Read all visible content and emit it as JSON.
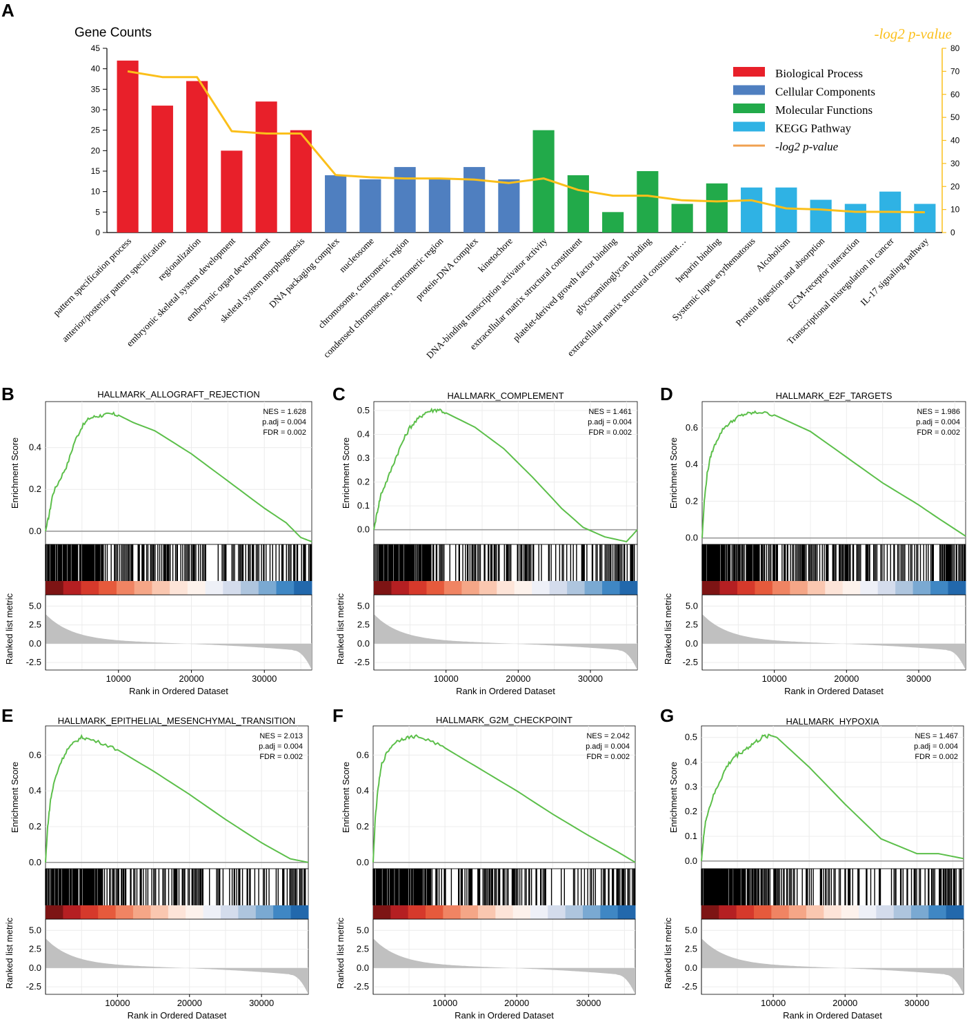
{
  "figure": {
    "panel_a": {
      "label": "A",
      "ylabel_left": "Gene Counts",
      "ylabel_right": "-log2 p-value"
    },
    "colors": {
      "biological_process": "#e8202a",
      "cellular_components": "#4f7fc0",
      "molecular_functions": "#22aa4a",
      "kegg_pathway": "#2fb2e4",
      "pvalue_line": "#fbbf1a",
      "legend_line": "#f0a050",
      "es_line": "#5cbf4a",
      "metric_fill": "#c0c0c0"
    }
  },
  "chart_data": [
    {
      "type": "bar",
      "panel": "A",
      "title": "",
      "ylabel": "Gene Counts",
      "y2label": "-log2 p-value",
      "ylim": [
        0,
        45
      ],
      "y2lim": [
        0,
        80
      ],
      "yticks": [
        0,
        5,
        10,
        15,
        20,
        25,
        30,
        35,
        40,
        45
      ],
      "y2ticks": [
        0,
        10,
        20,
        30,
        40,
        50,
        60,
        70,
        80
      ],
      "legend": [
        "Biological Process",
        "Cellular Components",
        "Molecular Functions",
        "KEGG Pathway",
        "-log2 p-value"
      ],
      "legend_position": "top-right",
      "categories": [
        "pattern specification process",
        "anterior/posterior pattern specification",
        "regionalization",
        "embryonic skeletal system development",
        "embryonic organ development",
        "skeletal system morphogenesis",
        "DNA packaging complex",
        "nucleosome",
        "chromosome, centromeric region",
        "condensed chromosome, centromeric region",
        "protein-DNA complex",
        "kinetochore",
        "DNA-binding transcription activator activity",
        "extracellular matrix structural constituent",
        "platelet-derived growth factor binding",
        "glycosaminoglycan binding",
        "extracellular matrix structural constituent…",
        "heparin binding",
        "Systemic lupus erythematosus",
        "Alcoholism",
        "Protein digestion and absorption",
        "ECM-receptor interaction",
        "Transcriptional misregulation in cancer",
        "IL-17 signaling pathway"
      ],
      "groups": [
        "BP",
        "BP",
        "BP",
        "BP",
        "BP",
        "BP",
        "CC",
        "CC",
        "CC",
        "CC",
        "CC",
        "CC",
        "MF",
        "MF",
        "MF",
        "MF",
        "MF",
        "MF",
        "KEGG",
        "KEGG",
        "KEGG",
        "KEGG",
        "KEGG",
        "KEGG"
      ],
      "series": [
        {
          "name": "Gene Counts",
          "values": [
            42,
            31,
            37,
            20,
            32,
            25,
            14,
            13,
            16,
            13,
            16,
            13,
            25,
            14,
            5,
            15,
            7,
            12,
            11,
            11,
            8,
            7,
            10,
            7
          ]
        },
        {
          "name": "-log2 p-value",
          "values": [
            70,
            67.5,
            67.5,
            44,
            43,
            43,
            25,
            24,
            23.5,
            23.5,
            23,
            21.5,
            23.5,
            18.5,
            16,
            16,
            14,
            13.5,
            14,
            10.5,
            10,
            9,
            9,
            8.8
          ]
        }
      ]
    },
    {
      "type": "line",
      "panel": "B",
      "title": "HALLMARK_ALLOGRAFT_REJECTION",
      "stats": [
        "NES = 1.628",
        "p.adj = 0.004",
        "FDR = 0.002"
      ],
      "xlabel": "Rank in Ordered Dataset",
      "ylabel": "Enrichment Score",
      "metric_label": "Ranked list metric",
      "ylim": [
        -0.05,
        0.6
      ],
      "yticks": [
        "0.0",
        "0.2",
        "0.4"
      ],
      "xlim": [
        0,
        36500
      ],
      "xticks": [
        "10000",
        "20000",
        "30000"
      ],
      "metric_ylim": [
        -3.5,
        6.5
      ],
      "metric_yticks": [
        "5.0",
        "2.5",
        "0.0",
        "-2.5"
      ],
      "x": [
        0,
        500,
        1000,
        2000,
        3000,
        4000,
        5000,
        6000,
        7000,
        8000,
        9000,
        10000,
        12000,
        15000,
        20000,
        25000,
        30000,
        33000,
        35000,
        36500
      ],
      "y": [
        0.0,
        0.08,
        0.18,
        0.25,
        0.32,
        0.43,
        0.5,
        0.54,
        0.55,
        0.555,
        0.56,
        0.555,
        0.52,
        0.48,
        0.37,
        0.24,
        0.11,
        0.04,
        -0.03,
        -0.05
      ]
    },
    {
      "type": "line",
      "panel": "C",
      "title": "HALLMARK_COMPLEMENT",
      "stats": [
        "NES = 1.461",
        "p.adj = 0.004",
        "FDR = 0.002"
      ],
      "xlabel": "Rank in Ordered Dataset",
      "ylabel": "Enrichment Score",
      "metric_label": "Ranked list metric",
      "ylim": [
        -0.05,
        0.52
      ],
      "yticks": [
        "0.0",
        "0.1",
        "0.2",
        "0.3",
        "0.4",
        "0.5"
      ],
      "xlim": [
        0,
        36500
      ],
      "xticks": [
        "10000",
        "20000",
        "30000"
      ],
      "metric_ylim": [
        -3.5,
        6.5
      ],
      "metric_yticks": [
        "5.0",
        "2.5",
        "0.0",
        "-2.5"
      ],
      "x": [
        0,
        500,
        1000,
        2000,
        3000,
        4000,
        5000,
        6000,
        7000,
        8000,
        9000,
        10000,
        14000,
        18000,
        22000,
        26000,
        29000,
        32000,
        35000,
        36500
      ],
      "y": [
        0.0,
        0.08,
        0.15,
        0.22,
        0.3,
        0.37,
        0.43,
        0.46,
        0.49,
        0.5,
        0.505,
        0.49,
        0.43,
        0.34,
        0.22,
        0.09,
        0.01,
        -0.03,
        -0.05,
        0.0
      ]
    },
    {
      "type": "line",
      "panel": "D",
      "title": "HALLMARK_E2F_TARGETS",
      "stats": [
        "NES = 1.986",
        "p.adj = 0.004",
        "FDR = 0.002"
      ],
      "xlabel": "Rank in Ordered Dataset",
      "ylabel": "Enrichment Score",
      "metric_label": "Ranked list metric",
      "ylim": [
        -0.02,
        0.72
      ],
      "yticks": [
        "0.0",
        "0.2",
        "0.4",
        "0.6"
      ],
      "xlim": [
        0,
        36500
      ],
      "xticks": [
        "10000",
        "20000",
        "30000"
      ],
      "metric_ylim": [
        -3.5,
        6.5
      ],
      "metric_yticks": [
        "5.0",
        "2.5",
        "0.0",
        "-2.5"
      ],
      "x": [
        0,
        300,
        700,
        1200,
        2000,
        3000,
        4000,
        5000,
        6000,
        7000,
        8000,
        10000,
        15000,
        20000,
        25000,
        30000,
        33000,
        36500
      ],
      "y": [
        0.0,
        0.2,
        0.35,
        0.45,
        0.53,
        0.6,
        0.63,
        0.66,
        0.675,
        0.68,
        0.685,
        0.67,
        0.58,
        0.44,
        0.3,
        0.18,
        0.1,
        0.01
      ]
    },
    {
      "type": "line",
      "panel": "E",
      "title": "HALLMARK_EPITHELIAL_MESENCHYMAL_TRANSITION",
      "stats": [
        "NES = 2.013",
        "p.adj = 0.004",
        "FDR = 0.002"
      ],
      "xlabel": "Rank in Ordered Dataset",
      "ylabel": "Enrichment Score",
      "metric_label": "Ranked list metric",
      "ylim": [
        -0.02,
        0.74
      ],
      "yticks": [
        "0.0",
        "0.2",
        "0.4",
        "0.6"
      ],
      "xlim": [
        0,
        36500
      ],
      "xticks": [
        "10000",
        "20000",
        "30000"
      ],
      "metric_ylim": [
        -3.5,
        6.5
      ],
      "metric_yticks": [
        "5.0",
        "2.5",
        "0.0",
        "-2.5"
      ],
      "x": [
        0,
        300,
        700,
        1200,
        2000,
        3000,
        4000,
        5000,
        6000,
        8000,
        10000,
        15000,
        20000,
        25000,
        30000,
        34000,
        36500
      ],
      "y": [
        0.0,
        0.2,
        0.35,
        0.45,
        0.55,
        0.63,
        0.67,
        0.7,
        0.69,
        0.665,
        0.63,
        0.51,
        0.38,
        0.24,
        0.11,
        0.02,
        0.0
      ]
    },
    {
      "type": "line",
      "panel": "F",
      "title": "HALLMARK_G2M_CHECKPOINT",
      "stats": [
        "NES = 2.042",
        "p.adj = 0.004",
        "FDR = 0.002"
      ],
      "xlabel": "Rank in Ordered Dataset",
      "ylabel": "Enrichment Score",
      "metric_label": "Ranked list metric",
      "ylim": [
        -0.02,
        0.74
      ],
      "yticks": [
        "0.0",
        "0.2",
        "0.4",
        "0.6"
      ],
      "xlim": [
        0,
        36500
      ],
      "xticks": [
        "10000",
        "20000",
        "30000"
      ],
      "metric_ylim": [
        -3.5,
        6.5
      ],
      "metric_yticks": [
        "5.0",
        "2.5",
        "0.0",
        "-2.5"
      ],
      "x": [
        0,
        300,
        700,
        1200,
        2000,
        3000,
        4000,
        5000,
        6000,
        8000,
        10000,
        15000,
        20000,
        25000,
        30000,
        34000,
        36500
      ],
      "y": [
        0.0,
        0.25,
        0.42,
        0.55,
        0.62,
        0.67,
        0.69,
        0.7,
        0.705,
        0.68,
        0.64,
        0.52,
        0.4,
        0.27,
        0.15,
        0.06,
        0.0
      ]
    },
    {
      "type": "line",
      "panel": "G",
      "title": "HALLMARK_HYPOXIA",
      "stats": [
        "NES = 1.467",
        "p.adj = 0.004",
        "FDR = 0.002"
      ],
      "xlabel": "Rank in Ordered Dataset",
      "ylabel": "Enrichment Score",
      "metric_label": "Ranked list metric",
      "ylim": [
        -0.02,
        0.53
      ],
      "yticks": [
        "0.0",
        "0.1",
        "0.2",
        "0.3",
        "0.4",
        "0.5"
      ],
      "xlim": [
        0,
        36500
      ],
      "xticks": [
        "10000",
        "20000",
        "30000"
      ],
      "metric_ylim": [
        -3.5,
        6.5
      ],
      "metric_yticks": [
        "5.0",
        "2.5",
        "0.0",
        "-2.5"
      ],
      "x": [
        0,
        300,
        700,
        1500,
        2500,
        3500,
        4500,
        5500,
        6500,
        7500,
        8500,
        9500,
        10500,
        12000,
        15000,
        20000,
        25000,
        30000,
        33000,
        36500
      ],
      "y": [
        0.0,
        0.1,
        0.18,
        0.25,
        0.32,
        0.38,
        0.42,
        0.44,
        0.46,
        0.48,
        0.5,
        0.51,
        0.5,
        0.46,
        0.38,
        0.23,
        0.09,
        0.03,
        0.03,
        0.01
      ]
    }
  ]
}
